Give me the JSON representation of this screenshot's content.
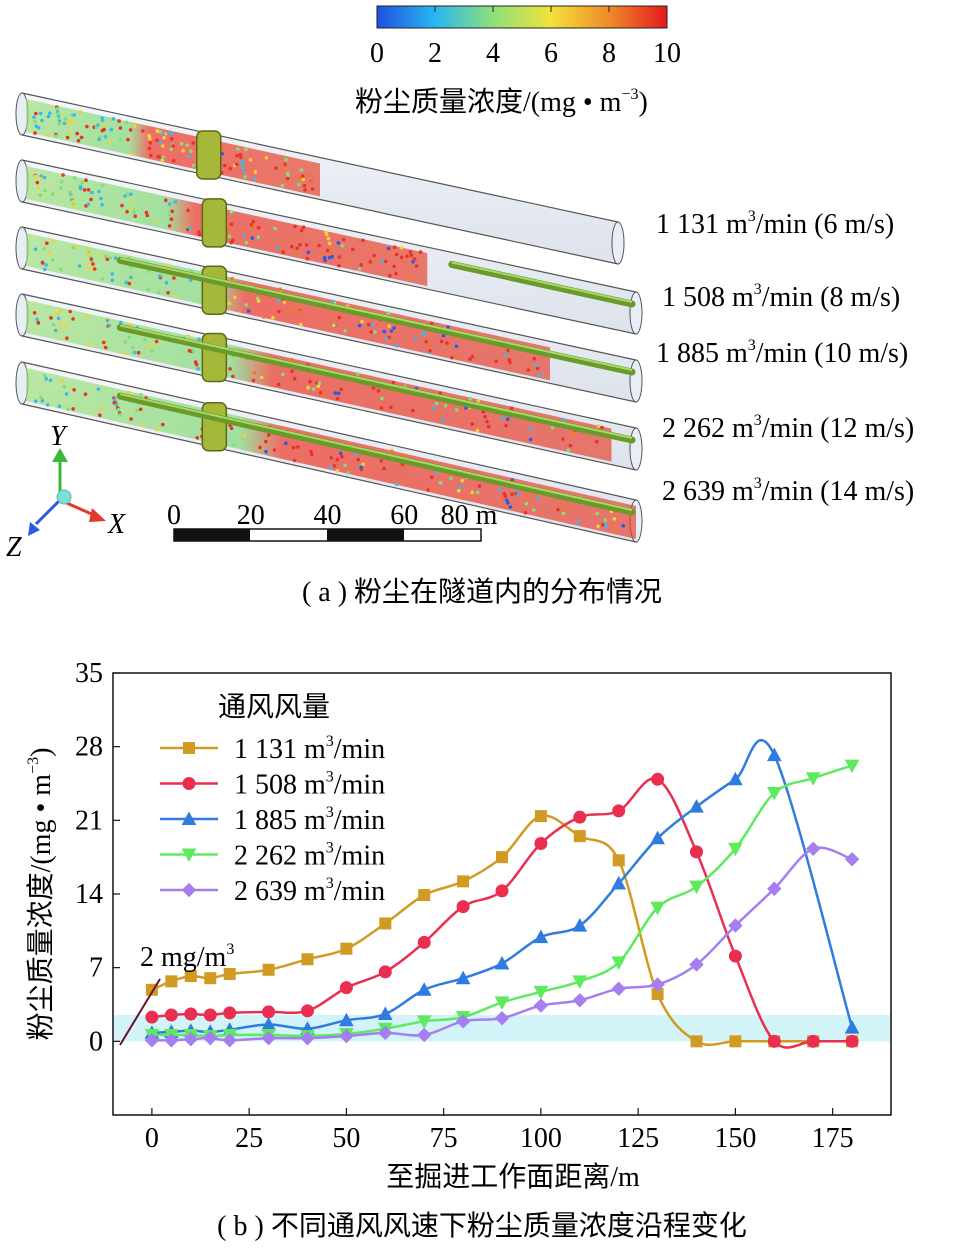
{
  "panel_a": {
    "colorbar": {
      "ticks": [
        "0",
        "2",
        "4",
        "6",
        "8",
        "10"
      ],
      "label": "粉尘质量浓度/(mg • m",
      "label_sup": "−3",
      "label_end": ")",
      "colors": [
        "#1f4fe0",
        "#27b7f0",
        "#8ee07a",
        "#f2e23a",
        "#f08a2a",
        "#e41a1c"
      ]
    },
    "tunnels": [
      {
        "flow": "1 131 m",
        "unit_rest": "/min (6 m/s)"
      },
      {
        "flow": "1 508 m",
        "unit_rest": "/min (8 m/s)"
      },
      {
        "flow": "1 885 m",
        "unit_rest": "/min (10 m/s)"
      },
      {
        "flow": "2 262 m",
        "unit_rest": "/min (12 m/s)"
      },
      {
        "flow": "2 639 m",
        "unit_rest": "/min (14 m/s)"
      }
    ],
    "sup3": "3",
    "axes_triad": {
      "y": "Y",
      "x": "X",
      "z": "Z"
    },
    "scale_bar": {
      "ticks": [
        "0",
        "20",
        "40",
        "60",
        "80 m"
      ]
    },
    "caption": "( a ) 粉尘在隧道内的分布情况"
  },
  "panel_b": {
    "caption": "( b ) 不同通风风速下粉尘质量浓度沿程变化",
    "annotation": {
      "text": "2 mg/m",
      "sup": "3"
    }
  },
  "chart_data": {
    "type": "line",
    "xlabel": "至掘进工作面距离/m",
    "ylabel": "粉尘质量浓度/(mg • m",
    "ylabel_sup": "−3",
    "ylabel_end": ")",
    "xlim": [
      -10,
      190
    ],
    "ylim": [
      -7,
      35
    ],
    "xticks": [
      0,
      25,
      50,
      75,
      100,
      125,
      150,
      175
    ],
    "yticks": [
      0,
      7,
      14,
      21,
      28,
      35
    ],
    "legend_title": "通风风量",
    "legend_position": "top-left",
    "band": {
      "y_from": 0,
      "y_to": 2.5,
      "color": "#d2f3f8"
    },
    "series": [
      {
        "name": "1 131 m3/min",
        "label": "1 131 m",
        "label_rest": "/min",
        "color": "#d19a22",
        "marker": "square",
        "x": [
          0,
          5,
          10,
          15,
          20,
          30,
          40,
          50,
          60,
          70,
          80,
          90,
          100,
          110,
          120,
          130,
          140,
          150,
          160,
          170,
          180
        ],
        "y": [
          4.9,
          5.7,
          6.2,
          6.0,
          6.4,
          6.8,
          7.8,
          8.8,
          11.2,
          13.9,
          15.2,
          17.5,
          21.4,
          19.5,
          17.2,
          4.5,
          0,
          0,
          0,
          0,
          0
        ]
      },
      {
        "name": "1 508 m3/min",
        "label": "1 508 m",
        "label_rest": "/min",
        "color": "#ea2e50",
        "marker": "circle",
        "x": [
          0,
          5,
          10,
          15,
          20,
          30,
          40,
          50,
          60,
          70,
          80,
          90,
          100,
          110,
          120,
          130,
          140,
          150,
          160,
          170,
          180
        ],
        "y": [
          2.3,
          2.5,
          2.6,
          2.5,
          2.7,
          2.8,
          2.9,
          5.1,
          6.6,
          9.4,
          12.8,
          14.3,
          18.8,
          21.3,
          21.9,
          24.9,
          18.0,
          8.1,
          0,
          0,
          0
        ]
      },
      {
        "name": "1 885 m3/min",
        "label": "1 885 m",
        "label_rest": "/min",
        "color": "#2f7ce0",
        "marker": "triangle-up",
        "x": [
          0,
          5,
          10,
          15,
          20,
          30,
          40,
          50,
          60,
          70,
          80,
          90,
          100,
          110,
          120,
          130,
          140,
          150,
          160,
          180
        ],
        "y": [
          0.8,
          0.9,
          1.0,
          0.9,
          1.1,
          1.6,
          1.2,
          2.0,
          2.6,
          4.9,
          6.0,
          7.4,
          9.9,
          11.0,
          15.0,
          19.3,
          22.3,
          24.9,
          27.2,
          1.3
        ]
      },
      {
        "name": "2 262 m3/min",
        "label": "2 262 m",
        "label_rest": "/min",
        "color": "#5eea5e",
        "marker": "triangle-down",
        "x": [
          0,
          5,
          10,
          15,
          20,
          30,
          40,
          50,
          60,
          70,
          80,
          90,
          100,
          110,
          120,
          130,
          140,
          150,
          160,
          170,
          180
        ],
        "y": [
          0.6,
          0.6,
          0.6,
          0.5,
          0.6,
          0.6,
          0.5,
          0.7,
          1.2,
          1.9,
          2.3,
          3.7,
          4.7,
          5.7,
          7.5,
          12.7,
          14.7,
          18.3,
          23.6,
          25.0,
          26.2
        ]
      },
      {
        "name": "2 639 m3/min",
        "label": "2 639 m",
        "label_rest": "/min",
        "color": "#a57ff0",
        "marker": "diamond",
        "x": [
          0,
          5,
          10,
          15,
          20,
          30,
          40,
          50,
          60,
          70,
          80,
          90,
          100,
          110,
          120,
          130,
          140,
          150,
          160,
          170,
          180
        ],
        "y": [
          0.1,
          0.1,
          0.2,
          0.3,
          0.1,
          0.3,
          0.3,
          0.5,
          0.8,
          0.6,
          1.9,
          2.2,
          3.4,
          3.9,
          5.0,
          5.4,
          7.3,
          11.0,
          14.5,
          18.3,
          17.3
        ]
      }
    ]
  }
}
